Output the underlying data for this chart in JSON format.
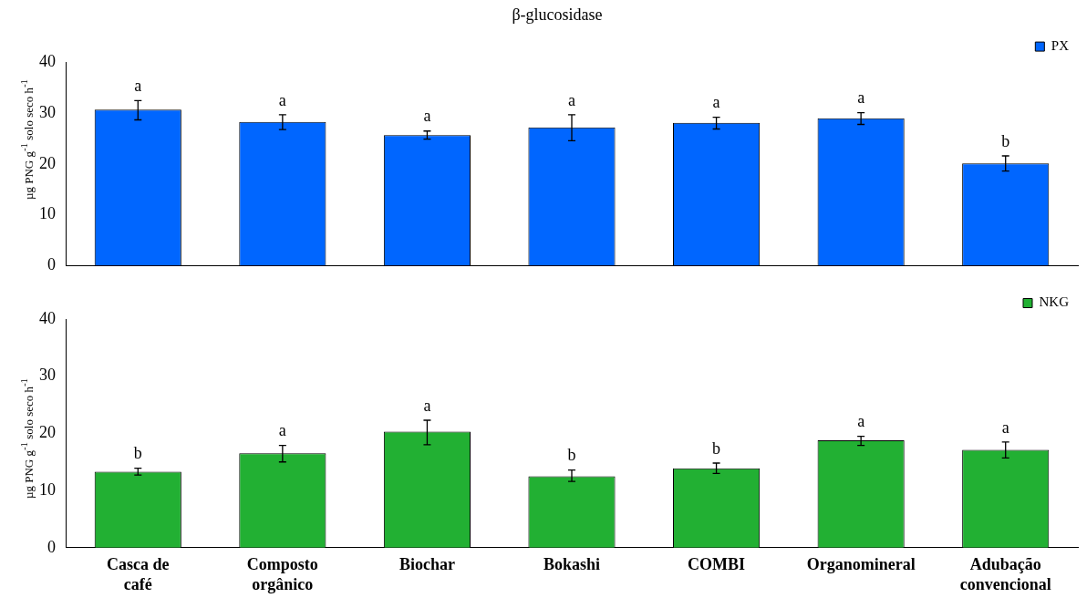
{
  "chart_data": [
    {
      "type": "bar",
      "title": "β-glucosidase",
      "ylabel": "µg PNG g$^{-1}$ solo seco h$^{-1}$",
      "categories": [
        "Casca de café",
        "Composto orgânico",
        "Biochar",
        "Bokashi",
        "COMBI",
        "Organomineral",
        "Adubação convencional"
      ],
      "series": [
        {
          "name": "PX",
          "color": "#0066ff",
          "values": [
            30.7,
            28.3,
            25.7,
            27.2,
            28.1,
            29.0,
            20.1
          ],
          "errors": [
            [
              28.7,
              32.5
            ],
            [
              26.8,
              29.7
            ],
            [
              24.9,
              26.5
            ],
            [
              24.6,
              29.7
            ],
            [
              26.9,
              29.2
            ],
            [
              27.8,
              30.1
            ],
            [
              18.6,
              21.6
            ]
          ]
        }
      ],
      "ylim": [
        0,
        40
      ],
      "yticks": [
        0,
        10,
        20,
        30,
        40
      ],
      "grid": false,
      "legend": "top right",
      "tick_labels": "y",
      "annotations": [
        {
          "text": "a",
          "x": "Casca de café",
          "y": 32.5
        },
        {
          "text": "a",
          "x": "Composto orgânico",
          "y": 29.7
        },
        {
          "text": "a",
          "x": "Biochar",
          "y": 26.5
        },
        {
          "text": "a",
          "x": "Bokashi",
          "y": 29.7
        },
        {
          "text": "a",
          "x": "COMBI",
          "y": 29.2
        },
        {
          "text": "a",
          "x": "Organomineral",
          "y": 30.1
        },
        {
          "text": "b",
          "x": "Adubação convencional",
          "y": 21.6
        }
      ]
    },
    {
      "type": "bar",
      "ylabel": "µg PNG g$^{-1}$ solo seco h$^{-1}$",
      "categories": [
        "Casca de café",
        "Composto orgânico",
        "Biochar",
        "Bokashi",
        "COMBI",
        "Organomineral",
        "Adubação convencional"
      ],
      "series": [
        {
          "name": "NKG",
          "color": "#22b033",
          "values": [
            13.3,
            16.5,
            20.3,
            12.5,
            13.9,
            18.8,
            17.1
          ],
          "errors": [
            [
              12.7,
              13.9
            ],
            [
              15.0,
              17.9
            ],
            [
              18.0,
              22.3
            ],
            [
              11.6,
              13.6
            ],
            [
              13.0,
              14.8
            ],
            [
              17.9,
              19.5
            ],
            [
              15.7,
              18.5
            ]
          ]
        }
      ],
      "ylim": [
        0,
        40
      ],
      "yticks": [
        0,
        10,
        20,
        30,
        40
      ],
      "grid": false,
      "legend": "top right",
      "annotations": [
        {
          "text": "b",
          "x": "Casca de café",
          "y": 13.9
        },
        {
          "text": "a",
          "x": "Composto orgânico",
          "y": 17.9
        },
        {
          "text": "a",
          "x": "Biochar",
          "y": 22.3
        },
        {
          "text": "b",
          "x": "Bokashi",
          "y": 13.6
        },
        {
          "text": "b",
          "x": "COMBI",
          "y": 14.8
        },
        {
          "text": "a",
          "x": "Organomineral",
          "y": 19.5
        },
        {
          "text": "a",
          "x": "Adubação convencional",
          "y": 18.5
        }
      ]
    }
  ]
}
